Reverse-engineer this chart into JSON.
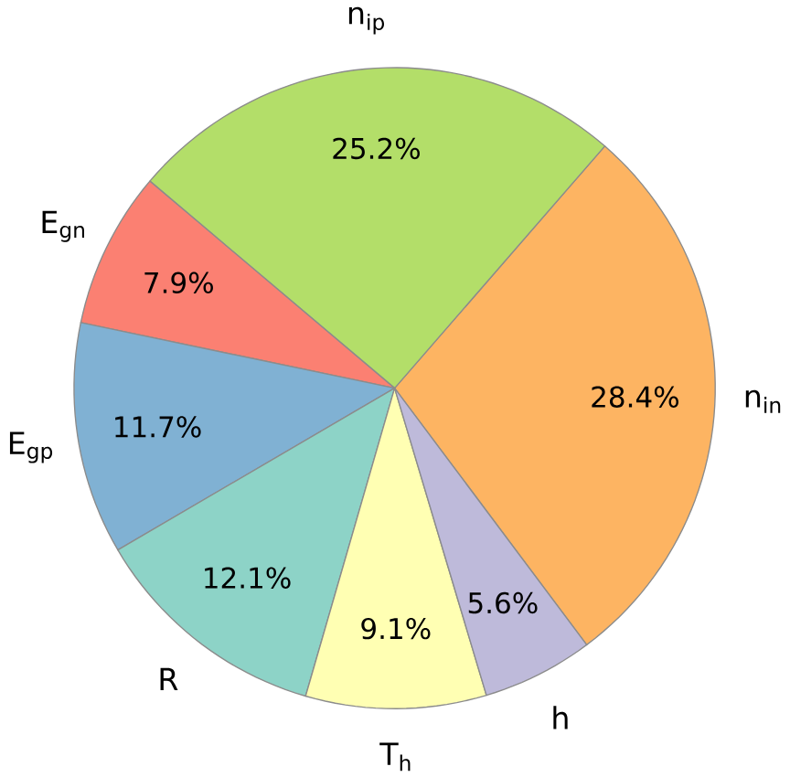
{
  "chart_data": {
    "type": "pie",
    "categories": [
      "n$_{in}$",
      "n$_{ip}$",
      "E$_{gn}$",
      "E$_{gp}$",
      "R",
      "T$_{h}$",
      "h"
    ],
    "values": [
      28.4,
      25.2,
      7.9,
      11.7,
      12.1,
      9.1,
      5.6
    ],
    "colors": [
      "#fdb462",
      "#b3de69",
      "#fb8072",
      "#80b1d3",
      "#8dd3c7",
      "#ffffb3",
      "#bebada"
    ],
    "value_labels": [
      "28.4%",
      "25.2%",
      "7.9%",
      "11.7%",
      "12.1%",
      "9.1%",
      "5.6%"
    ]
  }
}
